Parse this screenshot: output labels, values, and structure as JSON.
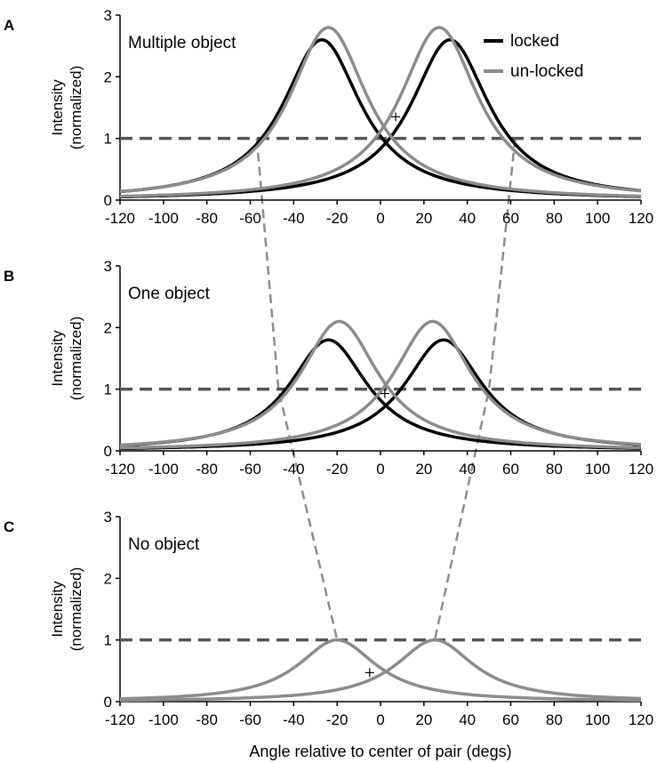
{
  "colors": {
    "locked": "#000000",
    "unlocked": "#8c8c8c",
    "threshold": "#555555",
    "connector": "#8c8c8c",
    "axis": "#000000"
  },
  "chart_data": {
    "type": "line",
    "xlabel": "Angle relative to center of pair (degs)",
    "ylabel_line1": "Intensity",
    "ylabel_line2": "(normalized)",
    "xlim": [
      -120,
      120
    ],
    "ylim": [
      0,
      3
    ],
    "xticks": [
      -120,
      -100,
      -80,
      -60,
      -40,
      -20,
      0,
      20,
      40,
      60,
      80,
      100,
      120
    ],
    "yticks": [
      0,
      1,
      2,
      3
    ],
    "threshold": 1,
    "legend": {
      "position": "top-right",
      "entries": [
        "locked",
        "un-locked"
      ]
    },
    "panels": [
      {
        "letter": "A",
        "title": "Multiple object",
        "series": [
          {
            "name": "locked",
            "peaks": [
              {
                "center": -27,
                "amp": 2.6,
                "w": 22
              },
              {
                "center": 32,
                "amp": 2.6,
                "w": 22
              }
            ]
          },
          {
            "name": "un-locked",
            "peaks": [
              {
                "center": -24,
                "amp": 2.8,
                "w": 22
              },
              {
                "center": 27,
                "amp": 2.8,
                "w": 22
              }
            ]
          }
        ],
        "crossing_marker": {
          "x": 7,
          "y": 1.35
        }
      },
      {
        "letter": "B",
        "title": "One object",
        "series": [
          {
            "name": "locked",
            "peaks": [
              {
                "center": -24,
                "amp": 1.8,
                "w": 22
              },
              {
                "center": 29,
                "amp": 1.8,
                "w": 22
              }
            ]
          },
          {
            "name": "un-locked",
            "peaks": [
              {
                "center": -19,
                "amp": 2.1,
                "w": 22
              },
              {
                "center": 24,
                "amp": 2.1,
                "w": 22
              }
            ]
          }
        ],
        "crossing_marker": {
          "x": 2,
          "y": 0.93
        }
      },
      {
        "letter": "C",
        "title": "No object",
        "series": [
          {
            "name": "un-locked",
            "peaks": [
              {
                "center": -20,
                "amp": 1.0,
                "w": 22
              },
              {
                "center": 25,
                "amp": 1.0,
                "w": 22
              }
            ]
          }
        ],
        "crossing_marker": {
          "x": -5,
          "y": 0.47
        }
      }
    ],
    "connectors": {
      "left": [
        -57,
        -47,
        -20
      ],
      "right": [
        62,
        50,
        25
      ]
    }
  }
}
